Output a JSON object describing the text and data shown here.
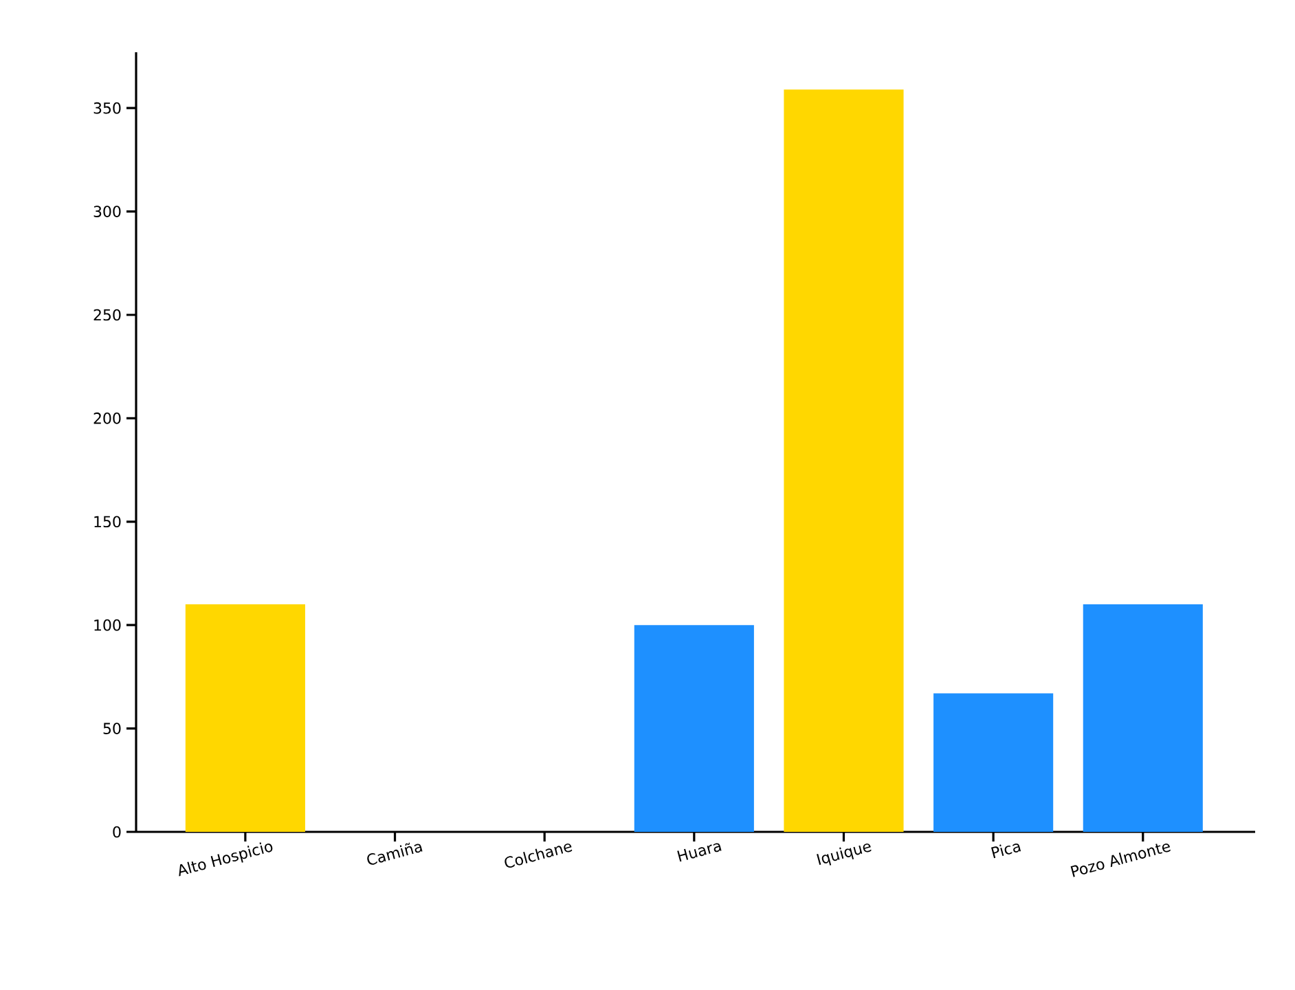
{
  "chart_data": {
    "type": "bar",
    "categories": [
      "Alto Hospicio",
      "Camiña",
      "Colchane",
      "Huara",
      "Iquique",
      "Pica",
      "Pozo Almonte"
    ],
    "values": [
      110,
      0,
      0,
      100,
      359,
      67,
      110
    ],
    "colors": [
      "#ffd700",
      "#1e90ff",
      "#1e90ff",
      "#1e90ff",
      "#ffd700",
      "#1e90ff",
      "#1e90ff"
    ],
    "ylim": [
      0,
      377
    ],
    "yticks": [
      0,
      50,
      100,
      150,
      200,
      250,
      300,
      350
    ]
  }
}
